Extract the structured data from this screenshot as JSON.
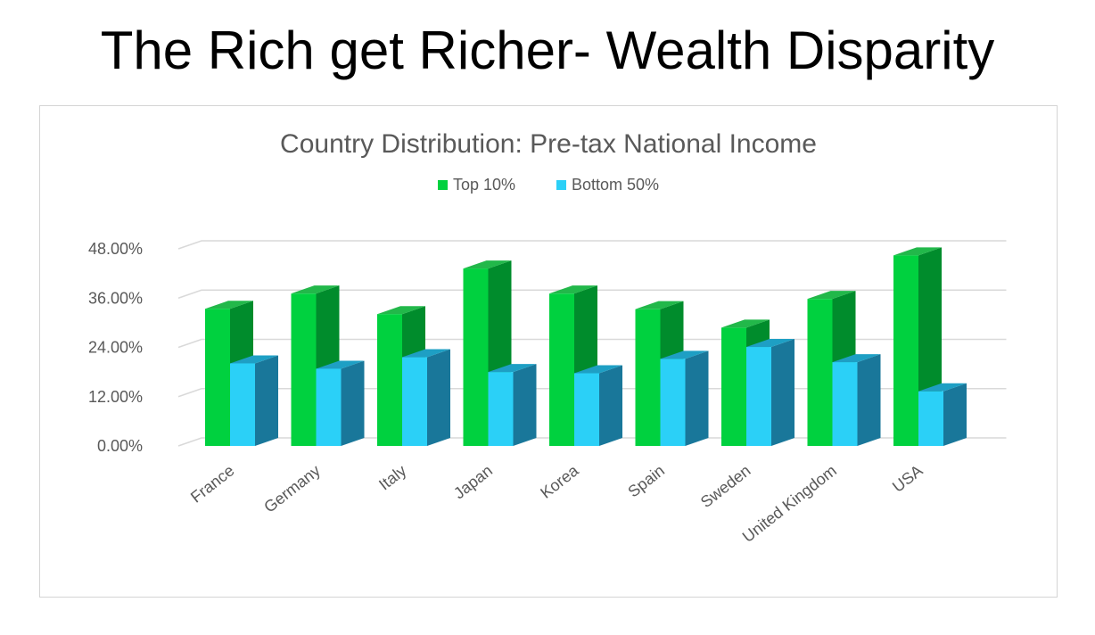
{
  "page": {
    "title": "The Rich get Richer- Wealth Disparity"
  },
  "colors": {
    "top_front": "#00d13f",
    "top_side": "#008c2c",
    "top_cap": "#22b84a",
    "bottom_front": "#2bd0f7",
    "bottom_side": "#19779a",
    "bottom_cap": "#1e9fc4",
    "gridline": "#d9d9d9",
    "axis_text": "#595959"
  },
  "chart_data": {
    "type": "bar",
    "title": "Country Distribution: Pre-tax National Income",
    "categories": [
      "France",
      "Germany",
      "Italy",
      "Japan",
      "Korea",
      "Spain",
      "Sweden",
      "United Kingdom",
      "USA"
    ],
    "series": [
      {
        "name": "Top 10%",
        "values": [
          33.4,
          37.1,
          32.1,
          43.2,
          37.1,
          33.3,
          28.8,
          35.8,
          46.4
        ]
      },
      {
        "name": "Bottom 50%",
        "values": [
          20.1,
          18.8,
          21.6,
          18.0,
          17.7,
          21.2,
          24.1,
          20.4,
          13.3
        ]
      }
    ],
    "ylim": [
      0,
      48
    ],
    "yticks": [
      "0.00%",
      "12.00%",
      "24.00%",
      "36.00%",
      "48.00%"
    ],
    "ytick_values": [
      0,
      12,
      24,
      36,
      48
    ],
    "grid": true,
    "legend_position": "top-center",
    "style": "3d-clustered-column"
  }
}
